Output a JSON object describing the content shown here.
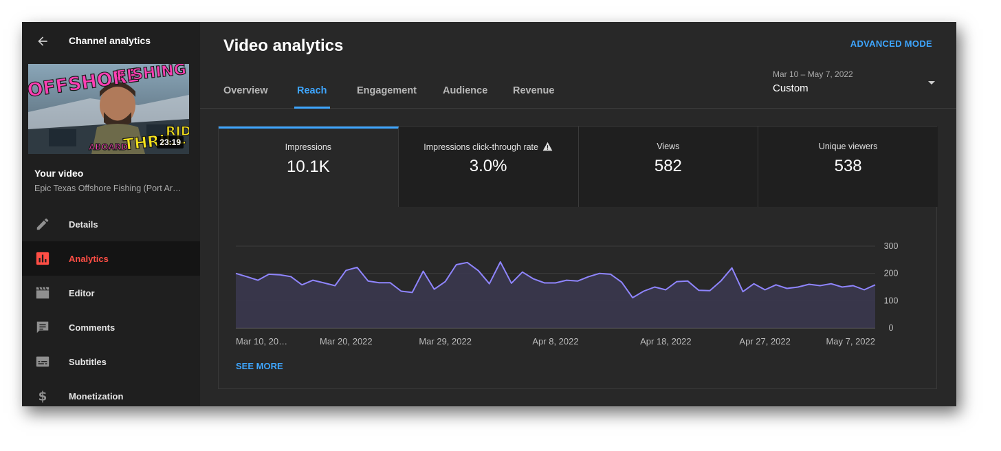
{
  "sidebar": {
    "title": "Channel analytics",
    "video": {
      "duration": "23:19",
      "thumbnail_texts": [
        "OFFSHORE",
        "FISHING",
        "ABOARD",
        "THRILL",
        "RIDE"
      ],
      "your_video_label": "Your video",
      "name": "Epic Texas Offshore Fishing (Port Ar…"
    },
    "items": [
      {
        "label": "Details",
        "icon": "pencil-icon",
        "active": false
      },
      {
        "label": "Analytics",
        "icon": "analytics-icon",
        "active": true
      },
      {
        "label": "Editor",
        "icon": "clapperboard-icon",
        "active": false
      },
      {
        "label": "Comments",
        "icon": "comment-icon",
        "active": false
      },
      {
        "label": "Subtitles",
        "icon": "subtitles-icon",
        "active": false
      },
      {
        "label": "Monetization",
        "icon": "dollar-icon",
        "active": false
      }
    ]
  },
  "header": {
    "title": "Video analytics",
    "advanced_mode": "ADVANCED MODE"
  },
  "tabs": [
    {
      "label": "Overview",
      "active": false
    },
    {
      "label": "Reach",
      "active": true
    },
    {
      "label": "Engagement",
      "active": false
    },
    {
      "label": "Audience",
      "active": false
    },
    {
      "label": "Revenue",
      "active": false
    }
  ],
  "date_picker": {
    "range": "Mar 10 – May 7, 2022",
    "value": "Custom"
  },
  "metrics": [
    {
      "label": "Impressions",
      "value": "10.1K",
      "active": true,
      "warning": false
    },
    {
      "label": "Impressions click-through rate",
      "value": "3.0%",
      "active": false,
      "warning": true
    },
    {
      "label": "Views",
      "value": "582",
      "active": false,
      "warning": false
    },
    {
      "label": "Unique viewers",
      "value": "538",
      "active": false,
      "warning": false
    }
  ],
  "see_more": "SEE MORE",
  "colors": {
    "accent": "#3ea6ff",
    "active_nav": "#ff4e45",
    "line": "#8f85ff",
    "area": "#3b3850"
  },
  "chart_data": {
    "type": "area",
    "series": [
      {
        "values": [
          200,
          188,
          175,
          197,
          195,
          188,
          158,
          175,
          165,
          155,
          211,
          222,
          172,
          166,
          166,
          135,
          130,
          208,
          142,
          170,
          232,
          240,
          210,
          162,
          242,
          164,
          205,
          180,
          165,
          165,
          175,
          172,
          188,
          200,
          197,
          168,
          111,
          135,
          150,
          140,
          170,
          172,
          138,
          137,
          172,
          220,
          133,
          162,
          140,
          158,
          145,
          150,
          160,
          155,
          162,
          150,
          155,
          140,
          158
        ]
      }
    ],
    "x_tick_labels": [
      "Mar 10, 20…",
      "Mar 20, 2022",
      "Mar 29, 2022",
      "Apr 8, 2022",
      "Apr 18, 2022",
      "Apr 27, 2022",
      "May 7, 2022"
    ],
    "x_tick_index": [
      0,
      10,
      19,
      29,
      39,
      48,
      58
    ],
    "y_ticks": [
      0,
      100,
      200,
      300
    ],
    "ylim": [
      0,
      300
    ],
    "grid": true
  }
}
